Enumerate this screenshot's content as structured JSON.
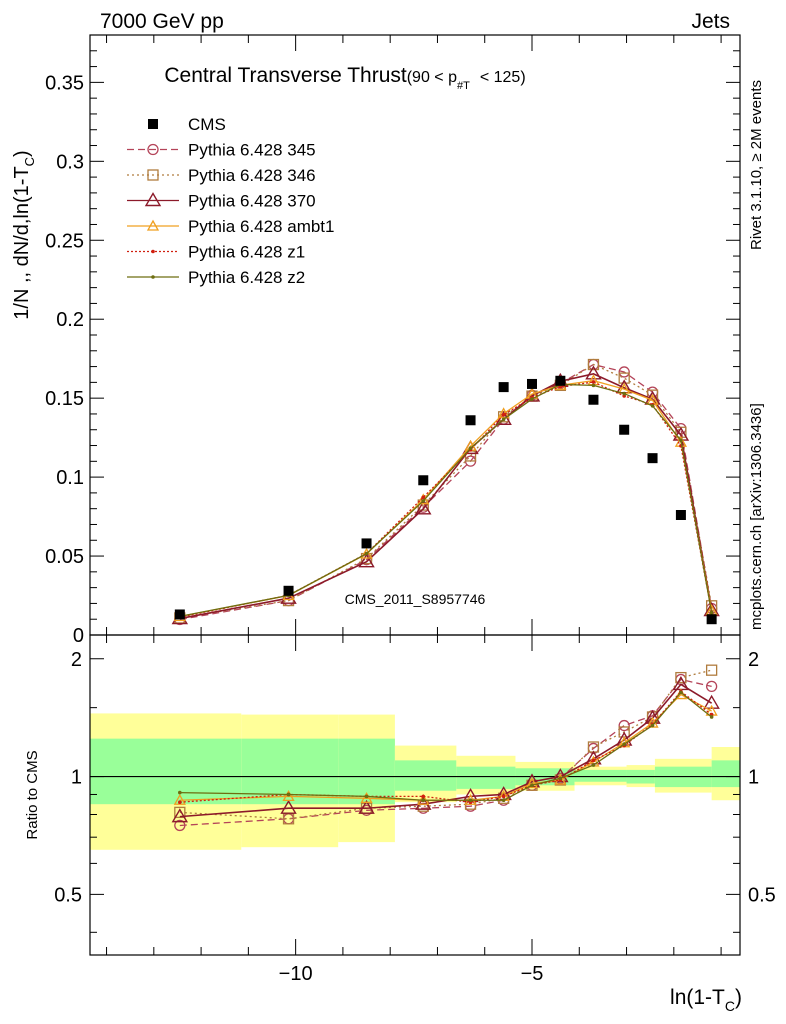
{
  "header": {
    "left": "7000 GeV pp",
    "right": "Jets"
  },
  "side_labels": {
    "rivet": "Rivet 3.1.10, ≥ 2M events",
    "mcplots": "mcplots.cern.ch [arXiv:1306.3436]"
  },
  "chart_data": {
    "type": "line",
    "title": "Central Transverse Thrust",
    "title_suffix": "(90 < p",
    "title_sub": "#T",
    "title_end": "< 125)",
    "ylabel": "1/N ,, dN/d,ln(1-T",
    "ylabel_sub": "C",
    "ylabel_end": ")",
    "xlabel": "ln(1-T",
    "xlabel_sub": "C",
    "xlabel_end": ")",
    "xlim": [
      -14.35,
      -0.6
    ],
    "ylim": [
      0,
      0.38
    ],
    "yticks": [
      0,
      0.05,
      0.1,
      0.15,
      0.2,
      0.25,
      0.3,
      0.35
    ],
    "ytick_labels": [
      "0",
      "0.05",
      "0.1",
      "0.15",
      "0.2",
      "0.25",
      "0.3",
      "0.35"
    ],
    "xticks": [
      -10,
      -5
    ],
    "xtick_labels": [
      "−10",
      "−5"
    ],
    "watermark": "CMS_2011_S8957746",
    "legend_position": "top-left",
    "x": [
      -12.45,
      -10.15,
      -8.5,
      -7.3,
      -6.3,
      -5.6,
      -5.0,
      -4.4,
      -3.7,
      -3.05,
      -2.45,
      -1.85,
      -1.2
    ],
    "data": {
      "name": "CMS",
      "color": "#000000",
      "values": [
        0.013,
        0.028,
        0.058,
        0.098,
        0.136,
        0.157,
        0.159,
        0.161,
        0.149,
        0.13,
        0.112,
        0.076,
        0.01
      ]
    },
    "series": [
      {
        "name": "Pythia 6.428 345",
        "color": "#b44459",
        "marker": "circle",
        "dash": "7,4",
        "values": [
          0.0098,
          0.0218,
          0.0477,
          0.0809,
          0.1101,
          0.1367,
          0.1518,
          0.1594,
          0.1713,
          0.1666,
          0.1538,
          0.1307,
          0.0168
        ]
      },
      {
        "name": "Pythia 6.428 346",
        "color": "#b07c3e",
        "marker": "square",
        "dash": "2,3",
        "values": [
          0.0108,
          0.0218,
          0.0484,
          0.0823,
          0.1134,
          0.1382,
          0.1513,
          0.1581,
          0.1713,
          0.1627,
          0.1519,
          0.1284,
          0.0185
        ]
      },
      {
        "name": "Pythia 6.428 370",
        "color": "#8c1a2a",
        "marker": "triangle",
        "dash": "",
        "values": [
          0.0104,
          0.0233,
          0.0464,
          0.0799,
          0.1182,
          0.1366,
          0.1514,
          0.1607,
          0.1654,
          0.1566,
          0.1494,
          0.1266,
          0.0155
        ]
      },
      {
        "name": "Pythia 6.428 ambt1",
        "color": "#f0a020",
        "marker": "triangle-small",
        "dash": "",
        "values": [
          0.0117,
          0.025,
          0.0513,
          0.0857,
          0.1196,
          0.1402,
          0.1526,
          0.1582,
          0.1611,
          0.1557,
          0.1487,
          0.1221,
          0.0155
        ]
      },
      {
        "name": "Pythia 6.428 z1",
        "color": "#d02010",
        "marker": "dot",
        "dash": "2,2",
        "values": [
          0.0113,
          0.0252,
          0.0516,
          0.0872,
          0.1173,
          0.1395,
          0.1504,
          0.1573,
          0.1602,
          0.1514,
          0.1459,
          0.1198,
          0.0143
        ]
      },
      {
        "name": "Pythia 6.428 z2",
        "color": "#6e6e10",
        "marker": "dot",
        "dash": "",
        "values": [
          0.0118,
          0.0251,
          0.0515,
          0.0849,
          0.1183,
          0.1366,
          0.1494,
          0.1587,
          0.1581,
          0.1529,
          0.1451,
          0.1233,
          0.0141
        ]
      }
    ],
    "ratio": {
      "ylabel": "Ratio to CMS",
      "yticks": [
        0.5,
        1,
        2
      ],
      "ytick_labels": [
        "0.5",
        "1",
        "2"
      ],
      "ylim": [
        0.35,
        2.3
      ],
      "band_edges": [
        -14.35,
        -11.15,
        -9.1,
        -7.9,
        -6.6,
        -5.35,
        -4.1,
        -3.0,
        -2.4,
        -1.2,
        -0.6
      ],
      "inner_band": [
        [
          0.85,
          1.25
        ],
        [
          0.85,
          1.25
        ],
        [
          0.85,
          1.25
        ],
        [
          0.92,
          1.1
        ],
        [
          0.93,
          1.06
        ],
        [
          0.95,
          1.05
        ],
        [
          0.97,
          1.04
        ],
        [
          0.96,
          1.04
        ],
        [
          0.94,
          1.06
        ],
        [
          0.94,
          1.1
        ],
        [
          0.94,
          1.1
        ]
      ],
      "outer_band": [
        [
          0.65,
          1.45
        ],
        [
          0.66,
          1.44
        ],
        [
          0.68,
          1.44
        ],
        [
          0.86,
          1.2
        ],
        [
          0.9,
          1.13
        ],
        [
          0.92,
          1.09
        ],
        [
          0.95,
          1.06
        ],
        [
          0.94,
          1.07
        ],
        [
          0.91,
          1.11
        ],
        [
          0.87,
          1.19
        ],
        [
          0.87,
          1.19
        ]
      ],
      "series_values": [
        [
          0.75,
          0.78,
          0.82,
          0.83,
          0.84,
          0.87,
          0.95,
          0.99,
          1.18,
          1.35,
          1.43,
          1.77,
          1.7
        ],
        [
          0.81,
          0.78,
          0.83,
          0.84,
          0.85,
          0.88,
          0.95,
          0.98,
          1.19,
          1.3,
          1.42,
          1.79,
          1.87
        ],
        [
          0.79,
          0.83,
          0.83,
          0.85,
          0.89,
          0.9,
          0.97,
          1.0,
          1.11,
          1.24,
          1.41,
          1.72,
          1.54
        ],
        [
          0.87,
          0.89,
          0.88,
          0.87,
          0.87,
          0.89,
          0.96,
          0.98,
          1.09,
          1.22,
          1.37,
          1.62,
          1.47
        ],
        [
          0.86,
          0.9,
          0.89,
          0.89,
          0.86,
          0.89,
          0.95,
          0.98,
          1.1,
          1.2,
          1.36,
          1.65,
          1.44
        ],
        [
          0.91,
          0.9,
          0.89,
          0.87,
          0.87,
          0.87,
          0.95,
          0.99,
          1.07,
          1.21,
          1.35,
          1.64,
          1.42
        ]
      ]
    }
  }
}
